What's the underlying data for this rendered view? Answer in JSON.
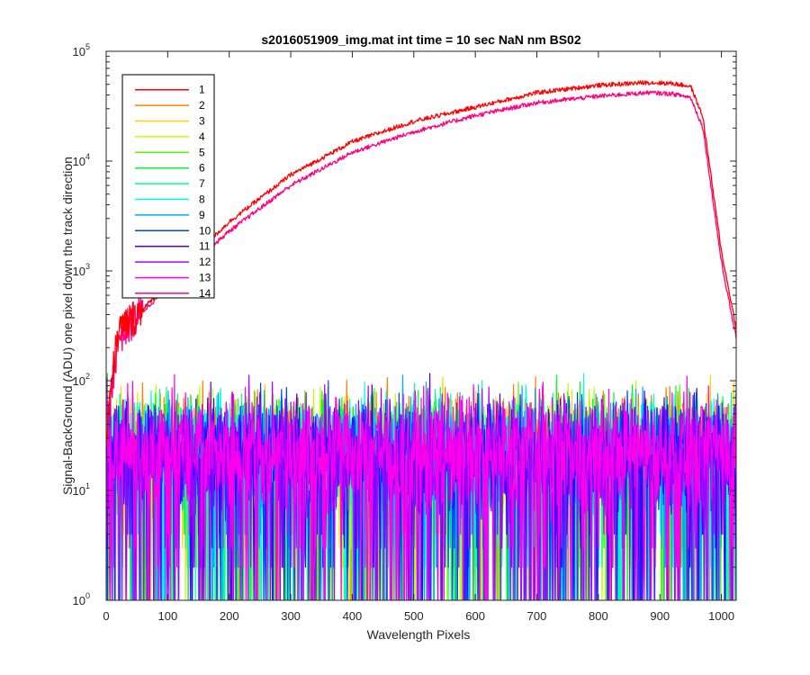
{
  "chart_data": {
    "type": "line",
    "title": "s2016051909_img.mat int time = 10 sec  NaN nm BS02",
    "xlabel": "Wavelength Pixels",
    "ylabel": "Signal-BackGround (ADU) one pixel down the track direction",
    "xlim": [
      0,
      1024
    ],
    "ylim": [
      1,
      100000
    ],
    "yscale": "log",
    "x_ticks": [
      0,
      100,
      200,
      300,
      400,
      500,
      600,
      700,
      800,
      900,
      1000
    ],
    "y_ticks": [
      {
        "base": "10",
        "exp": "0",
        "value": 1
      },
      {
        "base": "10",
        "exp": "1",
        "value": 10
      },
      {
        "base": "10",
        "exp": "2",
        "value": 100
      },
      {
        "base": "10",
        "exp": "3",
        "value": 1000
      },
      {
        "base": "10",
        "exp": "4",
        "value": 10000
      },
      {
        "base": "10",
        "exp": "5",
        "value": 100000
      }
    ],
    "legend_position": "top-left",
    "grid": false,
    "series": [
      {
        "name": "1",
        "color": "#ff0000",
        "shape": "signal",
        "x": [
          0,
          10,
          20,
          50,
          100,
          150,
          200,
          300,
          400,
          500,
          600,
          700,
          800,
          880,
          920,
          950,
          970,
          1000,
          1024
        ],
        "y": [
          35,
          120,
          280,
          400,
          750,
          1500,
          2800,
          7500,
          15000,
          23000,
          31000,
          42000,
          49000,
          52000,
          51000,
          48000,
          25000,
          1500,
          300
        ]
      },
      {
        "name": "2",
        "color": "#ff7f00",
        "shape": "noise",
        "mean": 25
      },
      {
        "name": "3",
        "color": "#ffd500",
        "shape": "noise",
        "mean": 22
      },
      {
        "name": "4",
        "color": "#c0ff00",
        "shape": "noise",
        "mean": 22
      },
      {
        "name": "5",
        "color": "#55ff00",
        "shape": "noise",
        "mean": 22
      },
      {
        "name": "6",
        "color": "#00ff2a",
        "shape": "noise",
        "mean": 22
      },
      {
        "name": "7",
        "color": "#00ff95",
        "shape": "noise",
        "mean": 22
      },
      {
        "name": "8",
        "color": "#00ffea",
        "shape": "noise",
        "mean": 22
      },
      {
        "name": "9",
        "color": "#00aaff",
        "shape": "noise",
        "mean": 22
      },
      {
        "name": "10",
        "color": "#0040ff",
        "shape": "noise",
        "mean": 22
      },
      {
        "name": "11",
        "color": "#3f00ff",
        "shape": "noise",
        "mean": 22
      },
      {
        "name": "12",
        "color": "#aa00ff",
        "shape": "noise",
        "mean": 22
      },
      {
        "name": "13",
        "color": "#ff00ea",
        "shape": "noise",
        "mean": 25
      },
      {
        "name": "14",
        "color": "#ff0080",
        "shape": "signal",
        "x": [
          0,
          10,
          20,
          50,
          100,
          150,
          200,
          300,
          400,
          500,
          600,
          700,
          800,
          880,
          920,
          950,
          970,
          1000,
          1024
        ],
        "y": [
          30,
          100,
          250,
          380,
          700,
          1300,
          2300,
          6000,
          12000,
          18500,
          26000,
          34000,
          39000,
          42000,
          41000,
          38000,
          20000,
          1200,
          240
        ]
      }
    ]
  }
}
